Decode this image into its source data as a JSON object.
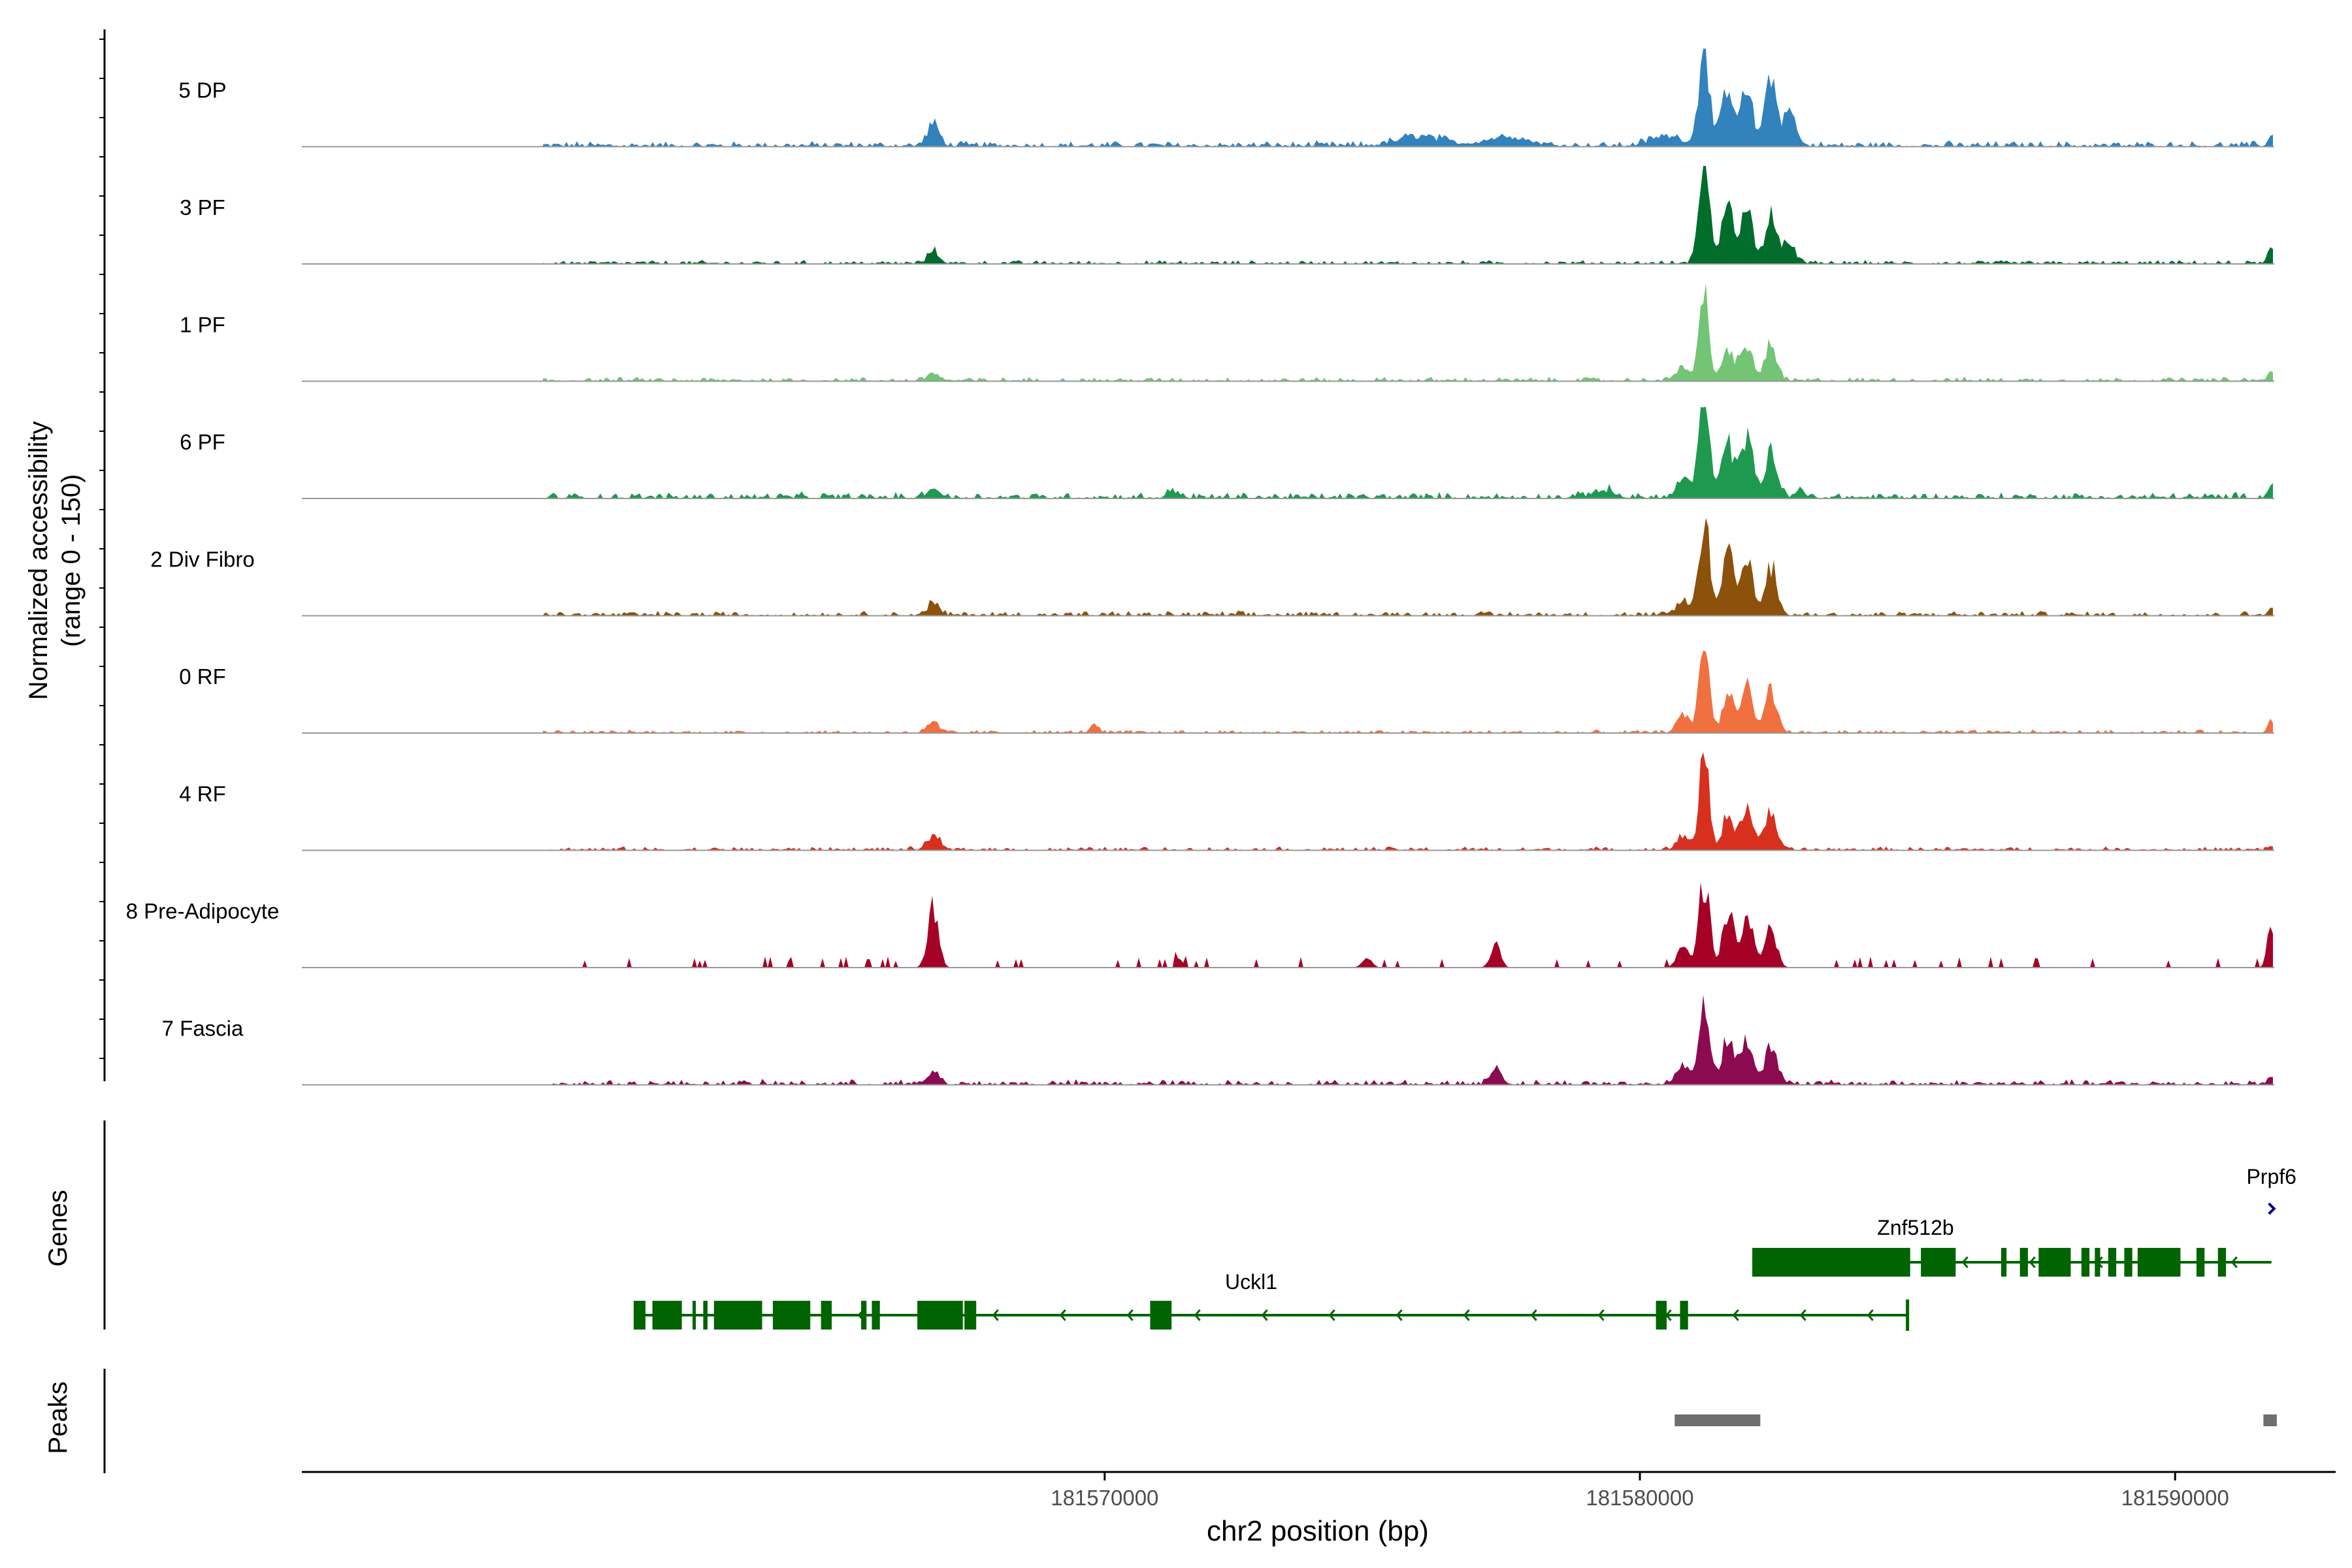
{
  "chart_data": {
    "type": "area",
    "title": "",
    "y_axis_title_line1": "Normalized accessibility",
    "y_axis_title_line2": "(range 0 - 150)",
    "xlabel": "chr2 position (bp)",
    "x_range": [
      181555000,
      181593000
    ],
    "x_ticks": [
      {
        "value": 181570000,
        "label": "181570000"
      },
      {
        "value": 181580000,
        "label": "181580000"
      },
      {
        "value": 181590000,
        "label": "181590000"
      }
    ],
    "y_range": [
      0,
      150
    ],
    "series": [
      {
        "name": "5 DP",
        "color": "#3182bd",
        "peaks": [
          [
            181566800,
            0.22,
            110
          ],
          [
            181581200,
            1.0,
            100
          ],
          [
            181581650,
            0.62,
            110
          ],
          [
            181582000,
            0.55,
            110
          ],
          [
            181582450,
            0.7,
            110
          ],
          [
            181582800,
            0.35,
            110
          ],
          [
            181575900,
            0.1,
            400
          ],
          [
            181577500,
            0.09,
            400
          ],
          [
            181580500,
            0.1,
            300
          ],
          [
            181591800,
            0.12,
            60
          ]
        ],
        "noise": 0.055
      },
      {
        "name": "3 PF",
        "color": "#006d2c",
        "peaks": [
          [
            181566800,
            0.12,
            110
          ],
          [
            181581200,
            1.0,
            100
          ],
          [
            181581650,
            0.65,
            110
          ],
          [
            181582000,
            0.55,
            110
          ],
          [
            181582450,
            0.55,
            110
          ],
          [
            181582800,
            0.2,
            110
          ],
          [
            181591800,
            0.18,
            60
          ]
        ],
        "noise": 0.035
      },
      {
        "name": "1 PF",
        "color": "#74c476",
        "peaks": [
          [
            181566800,
            0.08,
            110
          ],
          [
            181581200,
            1.0,
            90
          ],
          [
            181581650,
            0.3,
            110
          ],
          [
            181582000,
            0.35,
            110
          ],
          [
            181582450,
            0.37,
            110
          ],
          [
            181580800,
            0.15,
            110
          ],
          [
            181591800,
            0.1,
            60
          ]
        ],
        "noise": 0.04
      },
      {
        "name": "6 PF",
        "color": "#1f9950",
        "peaks": [
          [
            181566800,
            0.1,
            110
          ],
          [
            181581200,
            1.0,
            100
          ],
          [
            181581650,
            0.55,
            110
          ],
          [
            181582000,
            0.6,
            110
          ],
          [
            181582450,
            0.5,
            110
          ],
          [
            181580800,
            0.2,
            110
          ],
          [
            181571300,
            0.07,
            110
          ],
          [
            181579300,
            0.08,
            200
          ],
          [
            181583000,
            0.09,
            80
          ],
          [
            181591800,
            0.18,
            60
          ]
        ],
        "noise": 0.06
      },
      {
        "name": "2 Div Fibro",
        "color": "#8c510a",
        "peaks": [
          [
            181566800,
            0.12,
            110
          ],
          [
            181581200,
            1.0,
            100
          ],
          [
            181581650,
            0.6,
            110
          ],
          [
            181582000,
            0.55,
            110
          ],
          [
            181582450,
            0.5,
            110
          ],
          [
            181580800,
            0.15,
            110
          ],
          [
            181591800,
            0.1,
            60
          ]
        ],
        "noise": 0.045
      },
      {
        "name": "0 RF",
        "color": "#f07040",
        "peaks": [
          [
            181566800,
            0.1,
            110
          ],
          [
            181581200,
            1.0,
            90
          ],
          [
            181581650,
            0.38,
            110
          ],
          [
            181582000,
            0.45,
            110
          ],
          [
            181582450,
            0.45,
            110
          ],
          [
            181580800,
            0.2,
            110
          ],
          [
            181569800,
            0.08,
            80
          ],
          [
            181591800,
            0.15,
            60
          ]
        ],
        "noise": 0.03
      },
      {
        "name": "4 RF",
        "color": "#d7301f",
        "peaks": [
          [
            181566800,
            0.15,
            110
          ],
          [
            181581200,
            1.0,
            90
          ],
          [
            181581650,
            0.35,
            110
          ],
          [
            181582000,
            0.45,
            110
          ],
          [
            181582450,
            0.4,
            110
          ],
          [
            181580800,
            0.15,
            110
          ],
          [
            181591800,
            0.04,
            60
          ]
        ],
        "noise": 0.035
      },
      {
        "name": "8 Pre-Adipocyte",
        "color": "#a50026",
        "peaks": [
          [
            181566800,
            0.62,
            100
          ],
          [
            181581200,
            0.9,
            100
          ],
          [
            181581650,
            0.55,
            110
          ],
          [
            181582000,
            0.55,
            110
          ],
          [
            181582450,
            0.4,
            110
          ],
          [
            181580800,
            0.2,
            110
          ],
          [
            181577300,
            0.25,
            90
          ],
          [
            181574900,
            0.1,
            90
          ],
          [
            181571400,
            0.1,
            60
          ],
          [
            181591800,
            0.45,
            70
          ]
        ],
        "noise": 0.06,
        "sparse": true
      },
      {
        "name": "7 Fascia",
        "color": "#8c0a50",
        "peaks": [
          [
            181566800,
            0.12,
            110
          ],
          [
            181581200,
            0.85,
            100
          ],
          [
            181581650,
            0.5,
            110
          ],
          [
            181582000,
            0.45,
            110
          ],
          [
            181582450,
            0.4,
            110
          ],
          [
            181577300,
            0.15,
            110
          ],
          [
            181580800,
            0.2,
            110
          ],
          [
            181591800,
            0.08,
            60
          ]
        ],
        "noise": 0.05
      }
    ],
    "genes_track_label": "Genes",
    "peaks_track_label": "Peaks",
    "genes": [
      {
        "name": "Uckl1",
        "strand": "-",
        "start": 181561200,
        "end": 181585000,
        "exons": [
          [
            181561200,
            181561420
          ],
          [
            181561550,
            181562100
          ],
          [
            181562300,
            181562350
          ],
          [
            181562500,
            181562580
          ],
          [
            181562700,
            181563600
          ],
          [
            181563800,
            181564500
          ],
          [
            181564700,
            181564900
          ],
          [
            181565450,
            181565550
          ],
          [
            181565650,
            181565800
          ],
          [
            181566500,
            181567350
          ],
          [
            181567380,
            181567600
          ],
          [
            181570850,
            181571250
          ],
          [
            181580300,
            181580500
          ],
          [
            181580750,
            181580900
          ]
        ]
      },
      {
        "name": "Znf512b",
        "strand": "-",
        "start": 181582100,
        "end": 181591800,
        "exons": [
          [
            181582100,
            181585050
          ],
          [
            181585250,
            181585900
          ],
          [
            181586750,
            181586850
          ],
          [
            181587100,
            181587250
          ],
          [
            181587450,
            181588050
          ],
          [
            181588250,
            181588400
          ],
          [
            181588500,
            181588600
          ],
          [
            181588750,
            181588900
          ],
          [
            181589050,
            181589200
          ],
          [
            181589300,
            181590100
          ],
          [
            181590400,
            181590550
          ],
          [
            181590800,
            181590950
          ]
        ]
      },
      {
        "name": "Prpf6",
        "strand": "+",
        "start": 181591800,
        "end": 181591810,
        "exons": []
      }
    ],
    "peaks": [
      [
        181580650,
        181582250
      ],
      [
        181591650,
        181591900
      ]
    ]
  }
}
